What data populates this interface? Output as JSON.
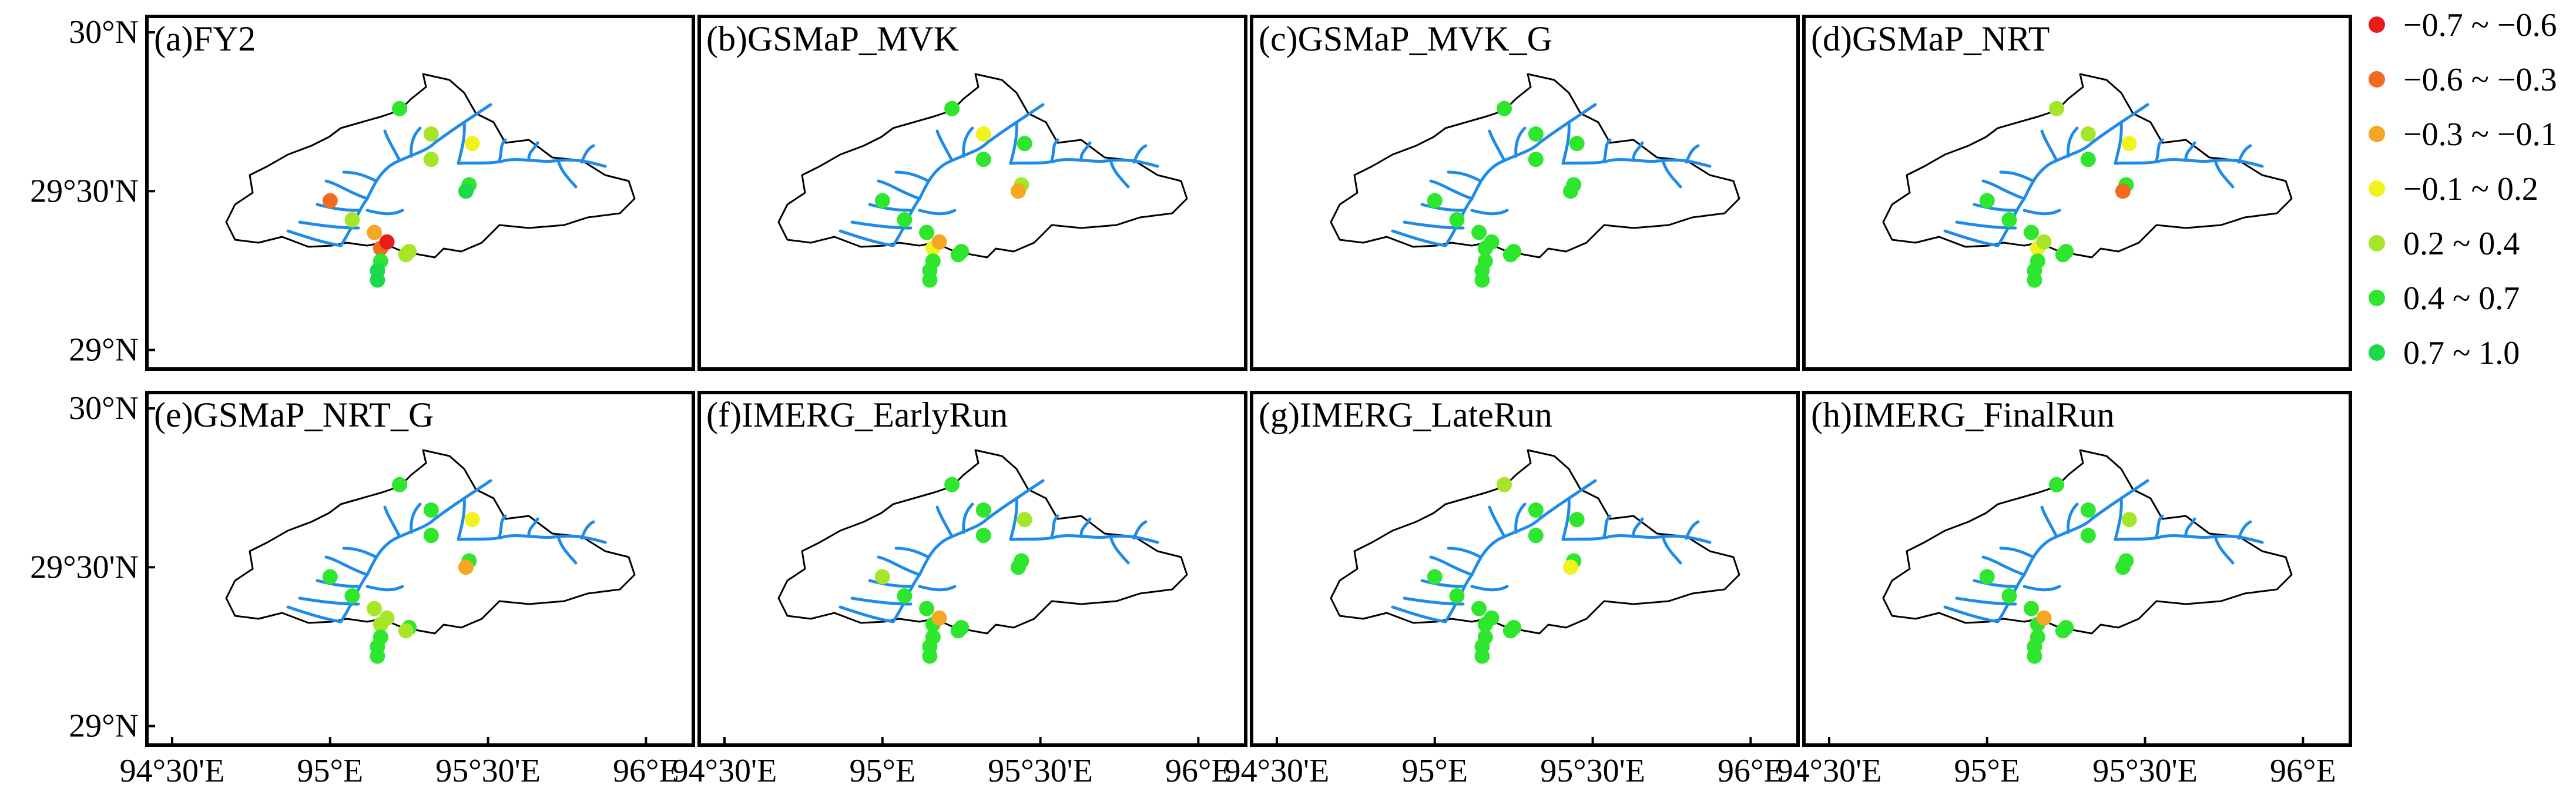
{
  "legend": {
    "items": [
      {
        "label": "−0.7 ~ −0.6",
        "color": "#e81c1c"
      },
      {
        "label": "−0.6 ~ −0.3",
        "color": "#f26a21"
      },
      {
        "label": "−0.3 ~ −0.1",
        "color": "#f5a623"
      },
      {
        "label": "−0.1 ~ 0.2",
        "color": "#f2f21f"
      },
      {
        "label": "0.2 ~ 0.4",
        "color": "#a6e629"
      },
      {
        "label": "0.4 ~ 0.7",
        "color": "#2ee62e"
      },
      {
        "label": "0.7 ~ 1.0",
        "color": "#1ad94a"
      }
    ]
  },
  "axes": {
    "lon_ticks": [
      {
        "value": 94.5,
        "label": "94°30'E"
      },
      {
        "value": 95.0,
        "label": "95°E"
      },
      {
        "value": 95.5,
        "label": "95°30'E"
      },
      {
        "value": 96.0,
        "label": "96°E"
      }
    ],
    "lat_ticks": [
      {
        "value": 30.0,
        "label": "30°N"
      },
      {
        "value": 29.5,
        "label": "29°30'N"
      },
      {
        "value": 29.0,
        "label": "29°N"
      }
    ],
    "lon_range": [
      94.42,
      96.15
    ],
    "lat_range": [
      28.94,
      30.05
    ]
  },
  "panels": [
    {
      "label": "(a)FY2",
      "classes": [
        5,
        4,
        4,
        3,
        5,
        6,
        1,
        4,
        2,
        1,
        0,
        5,
        6,
        6,
        4,
        4
      ]
    },
    {
      "label": "(b)GSMaP_MVK",
      "classes": [
        5,
        3,
        5,
        5,
        4,
        2,
        5,
        5,
        5,
        3,
        2,
        5,
        5,
        5,
        5,
        5
      ]
    },
    {
      "label": "(c)GSMaP_MVK_G",
      "classes": [
        5,
        5,
        5,
        5,
        5,
        5,
        5,
        5,
        5,
        5,
        5,
        5,
        5,
        5,
        5,
        5
      ]
    },
    {
      "label": "(d)GSMaP_NRT",
      "classes": [
        4,
        4,
        5,
        3,
        5,
        1,
        5,
        5,
        5,
        3,
        4,
        5,
        5,
        5,
        5,
        5
      ]
    },
    {
      "label": "(e)GSMaP_NRT_G",
      "classes": [
        5,
        5,
        5,
        3,
        5,
        2,
        5,
        5,
        4,
        4,
        4,
        5,
        5,
        5,
        5,
        4
      ]
    },
    {
      "label": "(f)IMERG_EarlyRun",
      "classes": [
        5,
        5,
        5,
        4,
        5,
        5,
        4,
        5,
        5,
        5,
        2,
        5,
        5,
        5,
        5,
        5
      ]
    },
    {
      "label": "(g)IMERG_LateRun",
      "classes": [
        4,
        5,
        5,
        5,
        5,
        3,
        5,
        5,
        5,
        5,
        5,
        5,
        5,
        5,
        5,
        5
      ]
    },
    {
      "label": "(h)IMERG_FinalRun",
      "classes": [
        5,
        5,
        5,
        4,
        5,
        5,
        5,
        5,
        5,
        5,
        2,
        5,
        5,
        5,
        5,
        5
      ]
    }
  ],
  "stations": [
    {
      "lon": 95.22,
      "lat": 29.76
    },
    {
      "lon": 95.32,
      "lat": 29.68
    },
    {
      "lon": 95.32,
      "lat": 29.6
    },
    {
      "lon": 95.45,
      "lat": 29.65
    },
    {
      "lon": 95.44,
      "lat": 29.52
    },
    {
      "lon": 95.43,
      "lat": 29.5
    },
    {
      "lon": 95.0,
      "lat": 29.47
    },
    {
      "lon": 95.07,
      "lat": 29.41
    },
    {
      "lon": 95.14,
      "lat": 29.37
    },
    {
      "lon": 95.16,
      "lat": 29.32
    },
    {
      "lon": 95.18,
      "lat": 29.34
    },
    {
      "lon": 95.16,
      "lat": 29.28
    },
    {
      "lon": 95.15,
      "lat": 29.25
    },
    {
      "lon": 95.15,
      "lat": 29.22
    },
    {
      "lon": 95.25,
      "lat": 29.31
    },
    {
      "lon": 95.24,
      "lat": 29.3
    }
  ]
}
